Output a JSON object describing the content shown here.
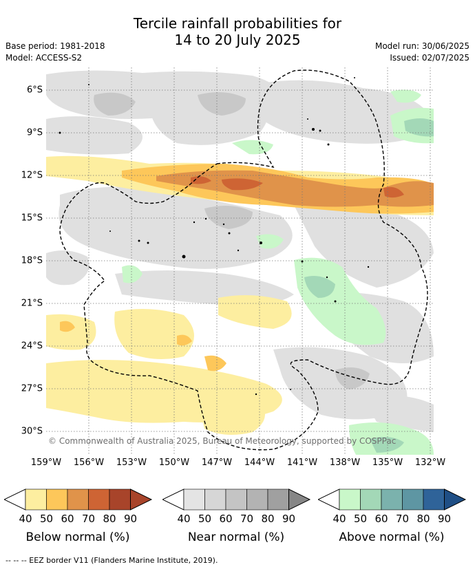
{
  "title_line1": "Tercile rainfall probabilities for",
  "title_line2": "14 to 20 July 2025",
  "meta_left": {
    "base_period": "Base period: 1981-2018",
    "model": "Model: ACCESS-S2"
  },
  "meta_right": {
    "model_run": "Model run: 30/06/2025",
    "issued": "Issued: 02/07/2025"
  },
  "lat_labels": [
    "6°S",
    "9°S",
    "12°S",
    "15°S",
    "18°S",
    "21°S",
    "24°S",
    "27°S",
    "30°S"
  ],
  "lon_labels": [
    "159°W",
    "156°W",
    "153°W",
    "150°W",
    "147°W",
    "144°W",
    "141°W",
    "138°W",
    "135°W",
    "132°W"
  ],
  "copyright": "© Commonwealth of Australia 2025, Bureau of Meteorology, supported by COSPPac",
  "colorbars": [
    {
      "label": "Below normal (%)",
      "ticks": [
        "40",
        "50",
        "60",
        "70",
        "80",
        "90"
      ],
      "colors": [
        "#fdeea0",
        "#fdc75a",
        "#e0934a",
        "#ce6434",
        "#a8442a",
        "#a8442a"
      ]
    },
    {
      "label": "Near normal (%)",
      "ticks": [
        "40",
        "50",
        "60",
        "70",
        "80",
        "90"
      ],
      "colors": [
        "#e4e4e4",
        "#d6d6d6",
        "#c4c4c4",
        "#b3b3b3",
        "#a0a0a0",
        "#868686"
      ]
    },
    {
      "label": "Above normal (%)",
      "ticks": [
        "40",
        "50",
        "60",
        "70",
        "80",
        "90"
      ],
      "colors": [
        "#c9f7c9",
        "#a3d8b7",
        "#7bb2ad",
        "#5e96a3",
        "#2f6399",
        "#1f4f86"
      ]
    }
  ],
  "footer": "-- -- -- EEZ border V11 (Flanders Marine Institute, 2019)."
}
